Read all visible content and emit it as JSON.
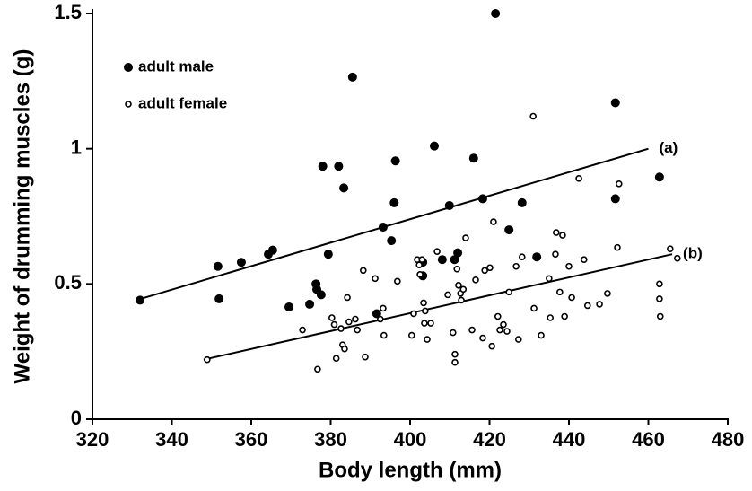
{
  "chart_data": {
    "type": "scatter",
    "xlabel": "Body length  (mm)",
    "ylabel": "Weight of drumming muscles  (g)",
    "xlim": [
      320,
      480
    ],
    "ylim": [
      0,
      1.5
    ],
    "xticks": [
      320,
      340,
      360,
      380,
      400,
      420,
      440,
      460,
      480
    ],
    "yticks": [
      0,
      0.5,
      1,
      1.5
    ],
    "legend": "upper left",
    "series": [
      {
        "name": "adult male",
        "color": "#000000",
        "filled": true,
        "x": [
          332,
          351.6,
          351.9,
          357.5,
          364.3,
          365.4,
          369.5,
          374.7,
          376.3,
          376.5,
          377.6,
          378,
          379.4,
          382,
          383.3,
          385.5,
          391.6,
          393.2,
          395.3,
          396,
          396.3,
          403.2,
          403.2,
          406.1,
          408.1,
          409.9,
          411.2,
          412,
          416,
          418.3,
          421.5,
          424.9,
          428.2,
          431.9,
          451.7,
          451.7,
          462.8
        ],
        "values": [
          0.44,
          0.565,
          0.445,
          0.58,
          0.61,
          0.625,
          0.415,
          0.425,
          0.5,
          0.48,
          0.46,
          0.935,
          0.61,
          0.935,
          0.855,
          1.265,
          0.39,
          0.71,
          0.66,
          0.8,
          0.955,
          0.58,
          0.53,
          1.01,
          0.59,
          0.79,
          0.59,
          0.615,
          0.965,
          0.815,
          1.5,
          0.7,
          0.8,
          0.6,
          1.17,
          0.815,
          0.895
        ]
      },
      {
        "name": "adult female",
        "color": "#000000",
        "filled": false,
        "x": [
          348.9,
          372.9,
          376.7,
          380.3,
          380.9,
          381.4,
          382.6,
          383,
          383.5,
          384.2,
          384.6,
          386.2,
          386.7,
          388.2,
          388.7,
          391.2,
          392.5,
          393.2,
          393.4,
          396.8,
          400.4,
          400.9,
          401.8,
          402.3,
          402.5,
          403,
          403.4,
          403.6,
          403.8,
          404.3,
          405.2,
          406.8,
          409.5,
          410.8,
          411.3,
          411.3,
          411.8,
          412.2,
          412.7,
          412.9,
          413.4,
          414,
          415.6,
          416.5,
          418.3,
          418.8,
          420.1,
          420.6,
          421,
          422.1,
          422.6,
          423.5,
          424.4,
          424.9,
          426.7,
          427.3,
          428.2,
          431.2,
          431,
          433,
          435,
          435.3,
          436.6,
          436.8,
          437.7,
          438.4,
          438.9,
          440,
          440.7,
          442.5,
          443.8,
          444.7,
          447.7,
          449.7,
          452.2,
          452.6,
          462.8,
          462.8,
          463,
          465.5,
          467.3
        ],
        "values": [
          0.22,
          0.33,
          0.185,
          0.375,
          0.35,
          0.225,
          0.335,
          0.275,
          0.26,
          0.45,
          0.36,
          0.37,
          0.33,
          0.55,
          0.23,
          0.52,
          0.37,
          0.41,
          0.31,
          0.51,
          0.31,
          0.39,
          0.59,
          0.57,
          0.535,
          0.59,
          0.43,
          0.355,
          0.4,
          0.295,
          0.355,
          0.62,
          0.46,
          0.32,
          0.24,
          0.21,
          0.555,
          0.495,
          0.465,
          0.44,
          0.48,
          0.67,
          0.33,
          0.515,
          0.3,
          0.55,
          0.56,
          0.27,
          0.73,
          0.38,
          0.33,
          0.35,
          0.325,
          0.47,
          0.565,
          0.295,
          0.6,
          0.41,
          1.12,
          0.31,
          0.52,
          0.375,
          0.61,
          0.69,
          0.47,
          0.68,
          0.38,
          0.565,
          0.45,
          0.89,
          0.59,
          0.42,
          0.425,
          0.465,
          0.635,
          0.87,
          0.5,
          0.445,
          0.38,
          0.63,
          0.595
        ]
      }
    ],
    "lines": [
      {
        "label": "(a)",
        "x": [
          331,
          460
        ],
        "values": [
          0.44,
          1.0
        ]
      },
      {
        "label": "(b)",
        "x": [
          348,
          466
        ],
        "values": [
          0.22,
          0.61
        ]
      }
    ]
  }
}
